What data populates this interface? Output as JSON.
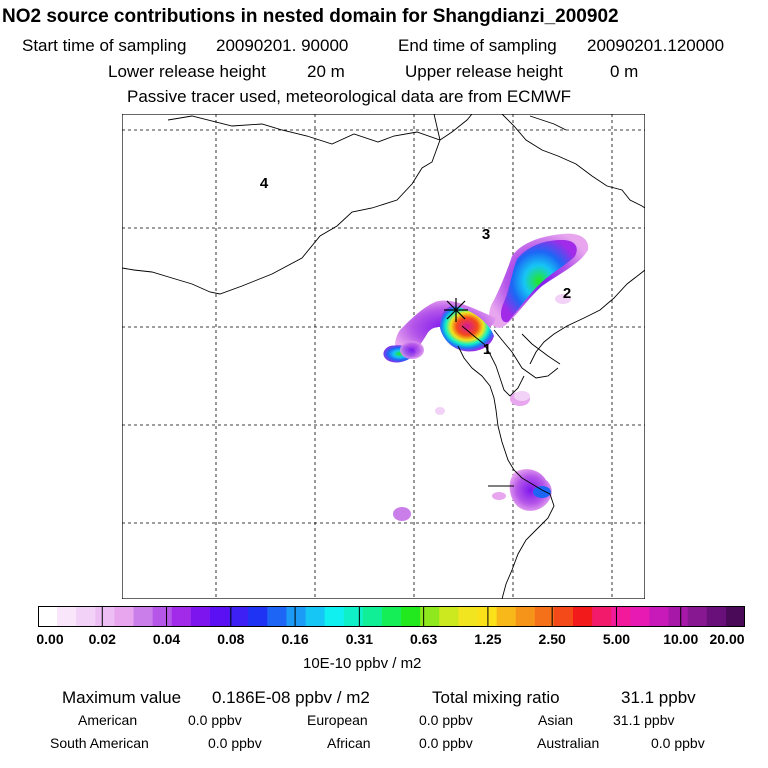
{
  "header": {
    "title": "NO2 source contributions in nested domain for Shangdianzi_200902",
    "start_label": "Start time of sampling",
    "start_value": "20090201. 90000",
    "end_label": "End time of sampling",
    "end_value": "20090201.120000",
    "lower_label": "Lower release height",
    "lower_value": "20 m",
    "upper_label": "Upper release height",
    "upper_value": "0 m",
    "note": "Passive tracer used, meteorological data are from ECMWF"
  },
  "map": {
    "region_labels": [
      "1",
      "2",
      "3",
      "4"
    ]
  },
  "legend": {
    "colors": [
      "#ffffff",
      "#f9e6fa",
      "#f2d2f6",
      "#ecbef3",
      "#e8a6ef",
      "#c97ee9",
      "#b556e9",
      "#a12be8",
      "#7d16ee",
      "#5a10f2",
      "#3e20f4",
      "#1f33f5",
      "#1d66f5",
      "#1b9bf5",
      "#16c6f5",
      "#10f0f0",
      "#10f0c8",
      "#10ef95",
      "#16ee58",
      "#22e91e",
      "#8fe81e",
      "#cce81e",
      "#f0e51e",
      "#fae11a",
      "#f8b81a",
      "#f6941a",
      "#f4711a",
      "#f44a1a",
      "#f21a1a",
      "#f21a6a",
      "#f21a9a",
      "#e81ab4",
      "#c81ab8",
      "#a818a8",
      "#881892",
      "#6a107a",
      "#4a0a58"
    ],
    "ticks": [
      "0.00",
      "0.02",
      "0.04",
      "0.08",
      "0.16",
      "0.31",
      "0.63",
      "1.25",
      "2.50",
      "5.00",
      "10.00",
      "20.00"
    ],
    "units": "10E-10 ppbv / m2"
  },
  "summary": {
    "max_label": "Maximum value",
    "max_value": "0.186E-08 ppbv / m2",
    "total_label": "Total mixing ratio",
    "total_value": "31.1 ppbv",
    "american_label": "American",
    "american_value": "0.0 ppbv",
    "european_label": "European",
    "european_value": "0.0 ppbv",
    "asian_label": "Asian",
    "asian_value": "31.1 ppbv",
    "south_american_label": "South American",
    "south_american_value": "0.0 ppbv",
    "african_label": "African",
    "african_value": "0.0 ppbv",
    "australian_label": "Australian",
    "australian_value": "0.0 ppbv"
  }
}
